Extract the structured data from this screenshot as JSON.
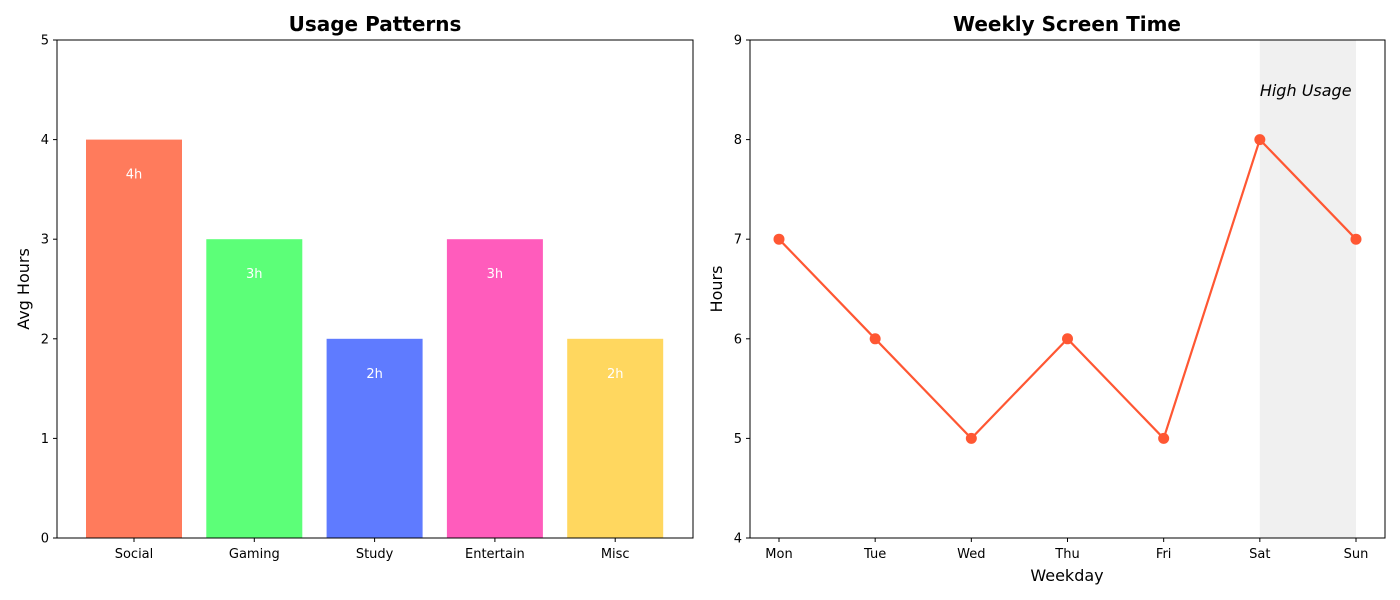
{
  "chart_data": [
    {
      "type": "bar",
      "title": "Usage Patterns",
      "xlabel": "",
      "ylabel": "Avg Hours",
      "categories": [
        "Social",
        "Gaming",
        "Study",
        "Entertain",
        "Misc"
      ],
      "values": [
        4,
        3,
        2,
        3,
        2
      ],
      "value_labels": [
        "4h",
        "3h",
        "2h",
        "3h",
        "2h"
      ],
      "colors": [
        "#ff7b5c",
        "#5cff78",
        "#5f7bff",
        "#ff5cbc",
        "#ffd75f"
      ],
      "ylim": [
        0,
        5
      ],
      "yticks": [
        0,
        1,
        2,
        3,
        4,
        5
      ],
      "grid": false
    },
    {
      "type": "line",
      "title": "Weekly Screen Time",
      "xlabel": "Weekday",
      "ylabel": "Hours",
      "categories": [
        "Mon",
        "Tue",
        "Wed",
        "Thu",
        "Fri",
        "Sat",
        "Sun"
      ],
      "values": [
        7,
        6,
        5,
        6,
        5,
        8,
        7
      ],
      "color": "#ff5733",
      "ylim": [
        4,
        9
      ],
      "yticks": [
        4,
        5,
        6,
        7,
        8,
        9
      ],
      "grid": false,
      "highlight": {
        "from": "Sat",
        "to": "Sun",
        "label": "High Usage",
        "color": "#f0f0f0"
      }
    }
  ]
}
